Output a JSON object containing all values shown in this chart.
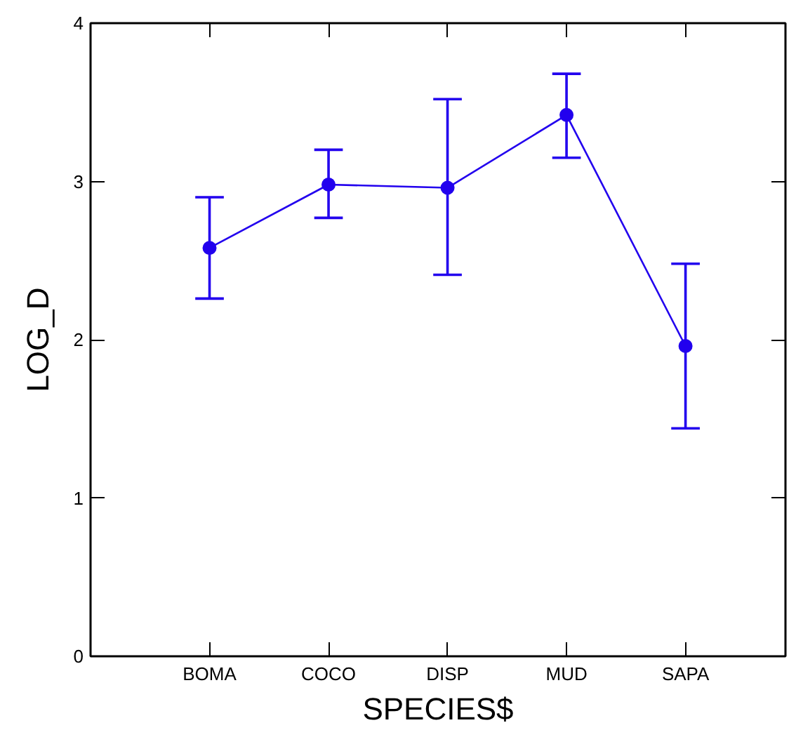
{
  "chart_data": {
    "type": "line",
    "xlabel": "SPECIES$",
    "ylabel": "LOG_D",
    "categories": [
      "BOMA",
      "COCO",
      "DISP",
      "MUD",
      "SAPA"
    ],
    "series": [
      {
        "color": "#2200ee",
        "values": [
          2.58,
          2.98,
          2.96,
          3.42,
          1.96
        ],
        "errors": [
          [
            2.26,
            2.9
          ],
          [
            2.77,
            3.2
          ],
          [
            2.41,
            3.52
          ],
          [
            3.15,
            3.68
          ],
          [
            1.44,
            2.48
          ]
        ]
      }
    ],
    "ylim": [
      0,
      4
    ],
    "yticks": [
      0,
      1,
      2,
      3,
      4
    ],
    "grid": false,
    "marker": "circle",
    "line_style": "solid"
  }
}
